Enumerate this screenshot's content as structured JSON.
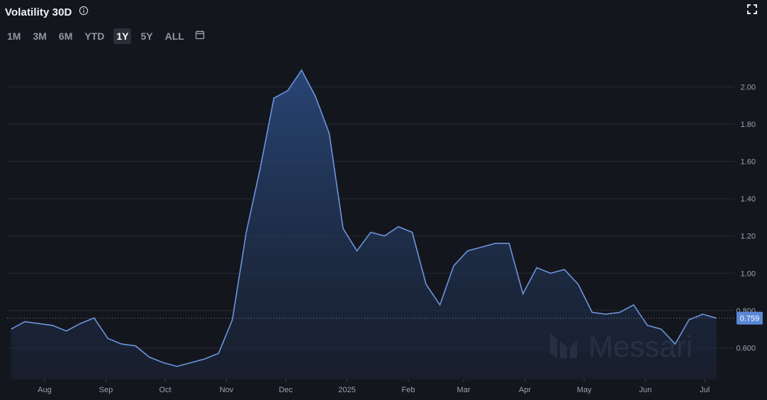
{
  "header": {
    "title": "Volatility 30D",
    "info_icon": "info-icon",
    "expand_icon": "expand-icon"
  },
  "ranges": {
    "items": [
      "1M",
      "3M",
      "6M",
      "YTD",
      "1Y",
      "5Y",
      "ALL"
    ],
    "active": "1Y",
    "calendar_icon": "calendar-icon"
  },
  "watermark": "Messari",
  "colors": {
    "background": "#14161d",
    "line": "#6b95dc",
    "fill_top": "#2a4a7e",
    "grid": "#262a33",
    "badge": "#5b88d6"
  },
  "chart_data": {
    "type": "area",
    "title": "Volatility 30D",
    "xlabel": "",
    "ylabel": "",
    "ylim": [
      0.43,
      2.2
    ],
    "x_ticks": [
      "Aug",
      "Sep",
      "Oct",
      "Nov",
      "Dec",
      "2025",
      "Feb",
      "Mar",
      "Apr",
      "May",
      "Jun",
      "Jul"
    ],
    "y_ticks": [
      "0.600",
      "0.800",
      "1.00",
      "1.20",
      "1.40",
      "1.60",
      "1.80",
      "2.00"
    ],
    "grid": true,
    "last_value": 0.759,
    "last_value_label": "0.759",
    "series": [
      {
        "x": [
          "2024-07-15",
          "2024-07-22",
          "2024-07-29",
          "2024-08-05",
          "2024-08-12",
          "2024-08-19",
          "2024-08-26",
          "2024-09-02",
          "2024-09-09",
          "2024-09-16",
          "2024-09-23",
          "2024-09-30",
          "2024-10-07",
          "2024-10-14",
          "2024-10-21",
          "2024-10-28",
          "2024-11-04",
          "2024-11-11",
          "2024-11-18",
          "2024-11-25",
          "2024-12-02",
          "2024-12-09",
          "2024-12-16",
          "2024-12-23",
          "2024-12-30",
          "2025-01-06",
          "2025-01-13",
          "2025-01-20",
          "2025-01-27",
          "2025-02-03",
          "2025-02-10",
          "2025-02-17",
          "2025-02-24",
          "2025-03-03",
          "2025-03-10",
          "2025-03-17",
          "2025-03-24",
          "2025-03-31",
          "2025-04-07",
          "2025-04-14",
          "2025-04-21",
          "2025-04-28",
          "2025-05-05",
          "2025-05-12",
          "2025-05-19",
          "2025-05-26",
          "2025-06-02",
          "2025-06-09",
          "2025-06-16",
          "2025-06-23",
          "2025-06-30",
          "2025-07-07"
        ],
        "values": [
          0.7,
          0.74,
          0.73,
          0.72,
          0.69,
          0.73,
          0.76,
          0.65,
          0.62,
          0.61,
          0.55,
          0.52,
          0.5,
          0.52,
          0.54,
          0.57,
          0.75,
          1.22,
          1.56,
          1.94,
          1.98,
          2.09,
          1.95,
          1.75,
          1.24,
          1.12,
          1.22,
          1.2,
          1.25,
          1.22,
          0.94,
          0.83,
          1.04,
          1.12,
          1.14,
          1.16,
          1.16,
          0.89,
          1.03,
          1.0,
          1.02,
          0.94,
          0.79,
          0.78,
          0.79,
          0.83,
          0.72,
          0.7,
          0.62,
          0.75,
          0.78,
          0.759
        ]
      }
    ]
  }
}
